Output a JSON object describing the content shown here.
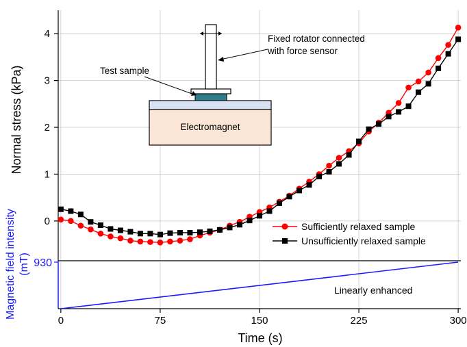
{
  "chart_data": [
    {
      "type": "line",
      "ylabel": "Normal stress (kPa)",
      "xlim": [
        -2,
        302
      ],
      "ylim": [
        -0.85,
        4.5
      ],
      "yticks": [
        0,
        1,
        2,
        3,
        4
      ],
      "grid": true,
      "legend_position": "bottom-right",
      "series": [
        {
          "name": "Sufficiently relaxed sample",
          "color": "#ff0000",
          "marker": "circle",
          "x": [
            0,
            7.5,
            15,
            22.5,
            30,
            37.5,
            45,
            52.5,
            60,
            67.5,
            75,
            82.5,
            90,
            97.5,
            105,
            112.5,
            120,
            127.5,
            135,
            142.5,
            150,
            157.5,
            165,
            172.5,
            180,
            187.5,
            195,
            202.5,
            210,
            217.5,
            225,
            232.5,
            240,
            247.5,
            255,
            262.5,
            270,
            277.5,
            285,
            292.5,
            300
          ],
          "y": [
            0.03,
            0.0,
            -0.1,
            -0.18,
            -0.27,
            -0.33,
            -0.37,
            -0.42,
            -0.44,
            -0.45,
            -0.46,
            -0.44,
            -0.42,
            -0.39,
            -0.31,
            -0.25,
            -0.19,
            -0.1,
            -0.02,
            0.09,
            0.19,
            0.29,
            0.41,
            0.54,
            0.69,
            0.84,
            1.0,
            1.18,
            1.35,
            1.49,
            1.66,
            1.91,
            2.1,
            2.31,
            2.52,
            2.85,
            2.98,
            3.17,
            3.48,
            3.76,
            4.13
          ]
        },
        {
          "name": "Unsufficiently relaxed sample",
          "color": "#000000",
          "marker": "square",
          "x": [
            0,
            7.5,
            15,
            22.5,
            30,
            37.5,
            45,
            52.5,
            60,
            67.5,
            75,
            82.5,
            90,
            97.5,
            105,
            112.5,
            120,
            127.5,
            135,
            142.5,
            150,
            157.5,
            165,
            172.5,
            180,
            187.5,
            195,
            202.5,
            210,
            217.5,
            225,
            232.5,
            240,
            247.5,
            255,
            262.5,
            270,
            277.5,
            285,
            292.5,
            300
          ],
          "y": [
            0.25,
            0.21,
            0.14,
            -0.02,
            -0.09,
            -0.17,
            -0.2,
            -0.23,
            -0.27,
            -0.27,
            -0.29,
            -0.26,
            -0.25,
            -0.25,
            -0.24,
            -0.22,
            -0.19,
            -0.14,
            -0.08,
            0.01,
            0.11,
            0.21,
            0.38,
            0.52,
            0.65,
            0.77,
            0.95,
            1.05,
            1.22,
            1.41,
            1.7,
            1.96,
            2.07,
            2.23,
            2.33,
            2.45,
            2.75,
            2.93,
            3.26,
            3.57,
            3.88
          ]
        }
      ],
      "annotations": [
        "Fixed rotator connected",
        "with force sensor",
        "Test sample",
        "Electromagnet"
      ]
    },
    {
      "type": "line",
      "xlabel": "Time (s)",
      "ylabel": "Magnetic field intensity (mT)",
      "xlim": [
        -2,
        302
      ],
      "ylim": [
        0,
        930
      ],
      "xticks": [
        0,
        75,
        150,
        225,
        300
      ],
      "yticks": [
        930
      ],
      "series": [
        {
          "color": "#1a1aff",
          "x": [
            0,
            300
          ],
          "y": [
            0,
            930
          ]
        }
      ],
      "annotations": [
        "Linearly enhanced"
      ]
    }
  ],
  "labels": {
    "upper_ylabel": "Normal stress (kPa)",
    "lower_ylabel_line1": "Magnetic field intensity",
    "lower_ylabel_line2": "(mT)",
    "xlabel": "Time (s)",
    "lower_ytick": "930",
    "upper_yticks": [
      "0",
      "1",
      "2",
      "3",
      "4"
    ],
    "xticks": [
      "0",
      "75",
      "150",
      "225",
      "300"
    ],
    "legend_red": "Sufficiently relaxed sample",
    "legend_black": "Unsufficiently relaxed sample",
    "inset_rotator_line1": "Fixed rotator connected",
    "inset_rotator_line2": "with force sensor",
    "inset_sample": "Test sample",
    "inset_magnet": "Electromagnet",
    "lower_annotation": "Linearly enhanced"
  },
  "colors": {
    "sufficient": "#ff0000",
    "unsufficient": "#000000",
    "field": "#1a1aff",
    "magnet_fill": "#fbe5d6",
    "plate_fill": "#dae3f3",
    "sample_fill": "#2e7d8c"
  }
}
